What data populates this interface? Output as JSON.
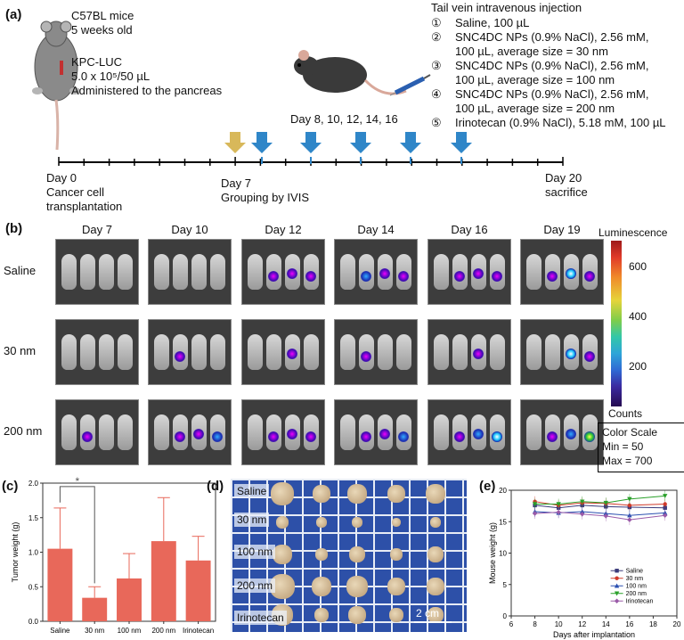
{
  "panels": {
    "a": {
      "label": "(a)",
      "mouse_info": "C57BL mice\n5 weeks old",
      "cell_info": "KPC-LUC\n5.0 x 10⁵/50 µL\nAdministered to the pancreas",
      "injection_title": "Tail vein intravenous injection",
      "groups": [
        {
          "num": "①",
          "text": "Saline, 100 µL"
        },
        {
          "num": "②",
          "text": "SNC4DC NPs (0.9% NaCl), 2.56 mM,\n100 µL, average size = 30 nm"
        },
        {
          "num": "③",
          "text": "SNC4DC NPs (0.9% NaCl), 2.56 mM,\n100 µL, average size = 100 nm"
        },
        {
          "num": "④",
          "text": "SNC4DC NPs (0.9% NaCl), 2.56 mM,\n100 µL, average size = 200 nm"
        },
        {
          "num": "⑤",
          "text": "Irinotecan (0.9% NaCl), 5.18 mM, 100 µL"
        }
      ],
      "injection_days": "Day 8, 10, 12, 14, 16",
      "day0": "Day 0\nCancer cell\ntransplantation",
      "day7": "Day 7\nGrouping by IVIS",
      "day20": "Day 20\nsacrifice"
    },
    "b": {
      "label": "(b)",
      "days": [
        "Day 7",
        "Day 10",
        "Day 12",
        "Day 14",
        "Day 16",
        "Day 19"
      ],
      "rows": [
        "Saline",
        "30 nm",
        "200 nm"
      ],
      "colorbar_title": "Luminescence",
      "colorbar_ticks": [
        "600",
        "400",
        "200"
      ],
      "colorbar_unit": "Counts",
      "color_scale": {
        "title": "Color Scale",
        "min": "Min = 50",
        "max": "Max = 700"
      }
    },
    "c": {
      "label": "(c)",
      "significance": "*"
    },
    "d": {
      "label": "(d)",
      "row_labels": [
        "Saline",
        "30 nm",
        "100 nm",
        "200 nm",
        "Irinotecan"
      ],
      "scale_bar": "2 cm"
    },
    "e": {
      "label": "(e)"
    }
  },
  "chart_data": [
    {
      "type": "bar",
      "title": "",
      "xlabel": "",
      "ylabel": "Tumor weight (g)",
      "categories": [
        "Saline",
        "30 nm",
        "100 nm",
        "200 nm",
        "Irinotecan"
      ],
      "values": [
        1.05,
        0.34,
        0.62,
        1.16,
        0.88
      ],
      "errors": [
        0.59,
        0.16,
        0.36,
        0.63,
        0.35
      ],
      "ylim": [
        0,
        2.0
      ],
      "yticks": [
        "0.0",
        "0.5",
        "1.0",
        "1.5",
        "2.0"
      ],
      "color": "#e8685a"
    },
    {
      "type": "line",
      "title": "",
      "xlabel": "Days after implantation",
      "ylabel": "Mouse weight (g)",
      "x": [
        8,
        10,
        12,
        14,
        16,
        19
      ],
      "xlim": [
        6,
        20
      ],
      "ylim": [
        0,
        20
      ],
      "xticks": [
        "6",
        "8",
        "10",
        "12",
        "14",
        "16",
        "18",
        "20"
      ],
      "yticks": [
        "0",
        "5",
        "10",
        "15",
        "20"
      ],
      "legend_position": "lower-right",
      "series": [
        {
          "name": "Saline",
          "color": "#3a3a7a",
          "marker": "square",
          "values": [
            17.6,
            17.2,
            17.6,
            17.4,
            17.3,
            17.2
          ]
        },
        {
          "name": "30 nm",
          "color": "#d03a2a",
          "marker": "circle",
          "values": [
            18.2,
            17.6,
            18.0,
            17.9,
            17.6,
            17.8
          ]
        },
        {
          "name": "100 nm",
          "color": "#2a4fb0",
          "marker": "triangle",
          "values": [
            16.6,
            16.4,
            16.6,
            16.3,
            16.0,
            16.4
          ]
        },
        {
          "name": "200 nm",
          "color": "#2aa02a",
          "marker": "triangle-down",
          "values": [
            17.8,
            17.8,
            18.2,
            18.0,
            18.6,
            19.1
          ]
        },
        {
          "name": "Irinotecan",
          "color": "#9a5aa8",
          "marker": "diamond",
          "values": [
            16.3,
            16.5,
            16.2,
            15.9,
            15.3,
            16.0
          ]
        }
      ]
    }
  ]
}
